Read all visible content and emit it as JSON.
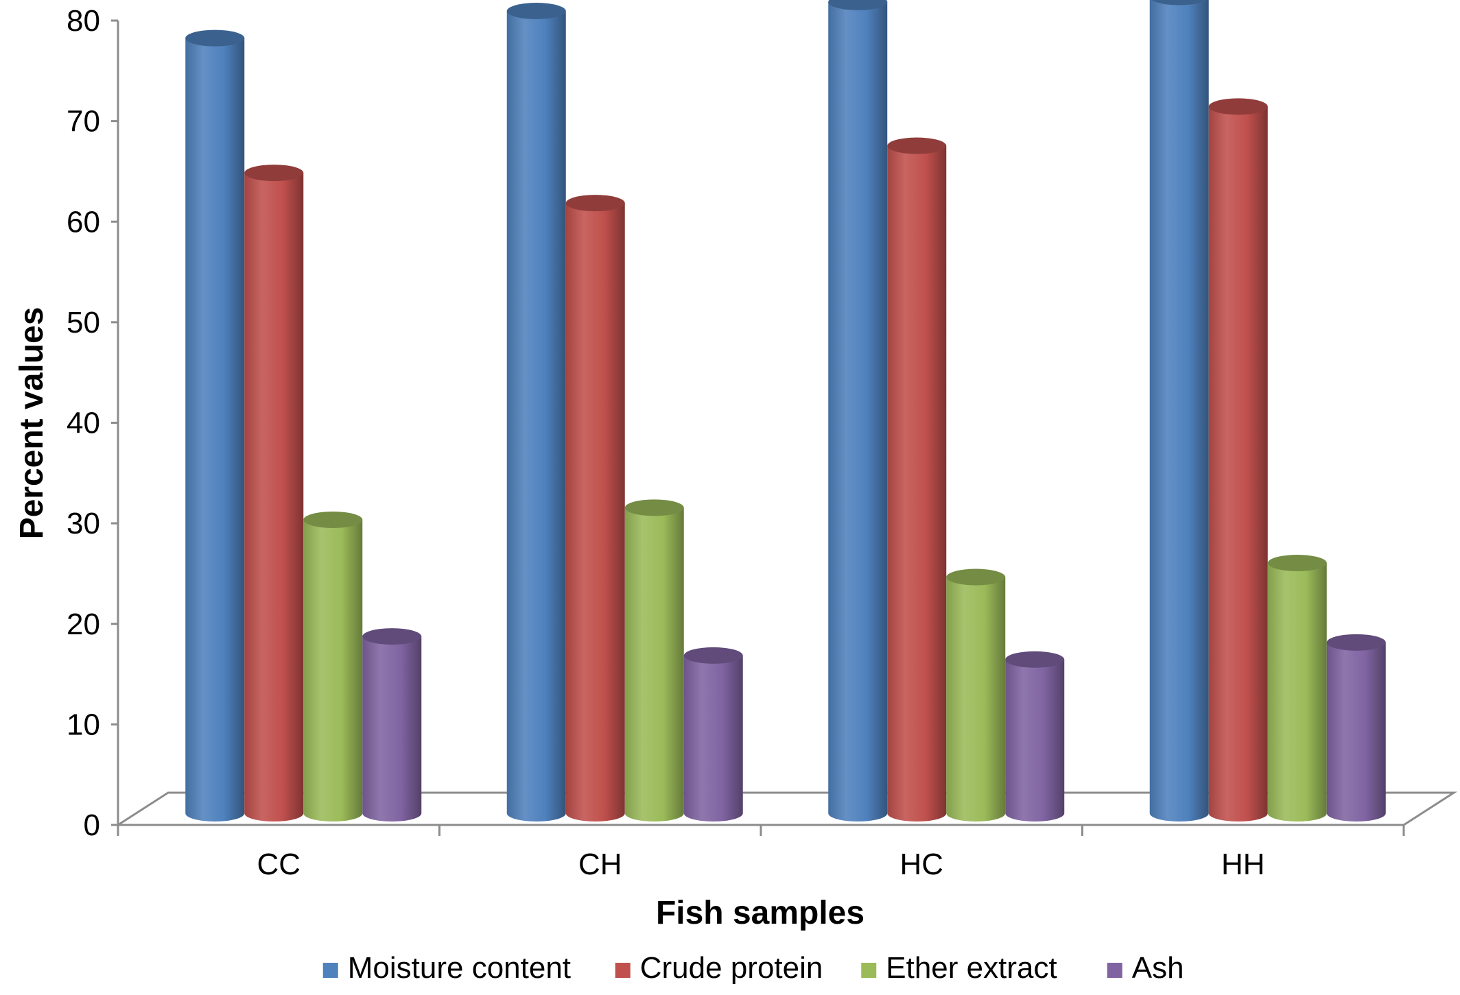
{
  "chart_data": {
    "type": "bar",
    "style": "3d-cylinder",
    "title": "",
    "xlabel": "Fish samples",
    "ylabel": "Percent values",
    "ylim": [
      0,
      80
    ],
    "yticks": [
      "0",
      "10",
      "20",
      "30",
      "40",
      "50",
      "60",
      "70",
      "80"
    ],
    "grid": false,
    "legend_position": "bottom",
    "categories": [
      "CC",
      "CH",
      "HC",
      "HH"
    ],
    "series": [
      {
        "name": "Moisture content",
        "color": "#4F81BD",
        "values": [
          74.5,
          77.2,
          78.1,
          78.6
        ]
      },
      {
        "name": "Crude protein",
        "color": "#C0504D",
        "values": [
          61.1,
          58.1,
          63.8,
          67.7
        ]
      },
      {
        "name": "Ether extract",
        "color": "#9BBB59",
        "values": [
          26.6,
          27.8,
          20.9,
          22.3
        ]
      },
      {
        "name": "Ash",
        "color": "#8064A2",
        "values": [
          15.0,
          13.1,
          12.7,
          14.4
        ]
      }
    ]
  }
}
